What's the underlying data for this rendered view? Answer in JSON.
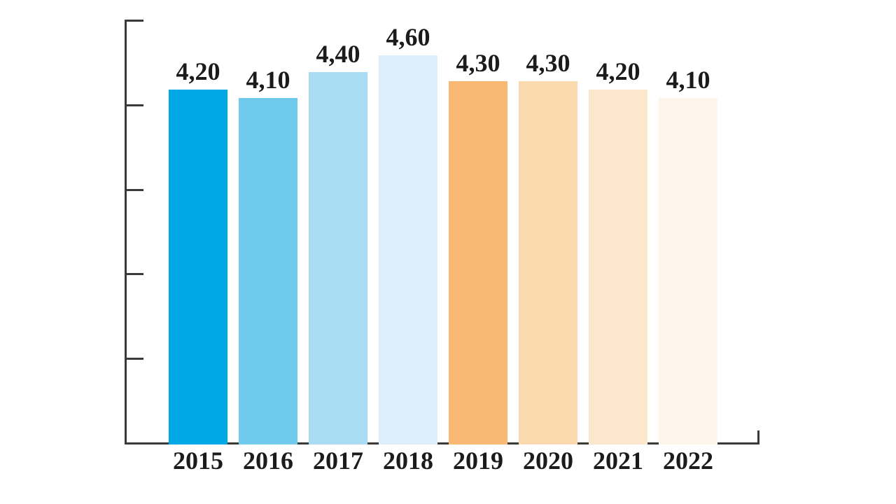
{
  "chart_data": {
    "type": "bar",
    "title": "",
    "xlabel": "",
    "ylabel": "",
    "categories": [
      "2015",
      "2016",
      "2017",
      "2018",
      "2019",
      "2020",
      "2021",
      "2022"
    ],
    "values": [
      4.2,
      4.1,
      4.4,
      4.6,
      4.3,
      4.3,
      4.2,
      4.1
    ],
    "value_labels": [
      "4,20",
      "4,10",
      "4,40",
      "4,60",
      "4,30",
      "4,30",
      "4,20",
      "4,10"
    ],
    "bar_colors": [
      "#00A9E6",
      "#6FCAEC",
      "#A9DCF3",
      "#DCEEFA",
      "#F9B873",
      "#FBD9AE",
      "#FDE7CC",
      "#FEF5EA"
    ],
    "ylim": [
      0,
      5
    ],
    "y_ticks": [
      1,
      2,
      3,
      4,
      5
    ],
    "y_tick_labels": [
      "",
      "",
      "",
      "",
      ""
    ],
    "grid": false,
    "legend": null,
    "axis_color": "#3a3a38",
    "label_color": "#1d1b19"
  }
}
